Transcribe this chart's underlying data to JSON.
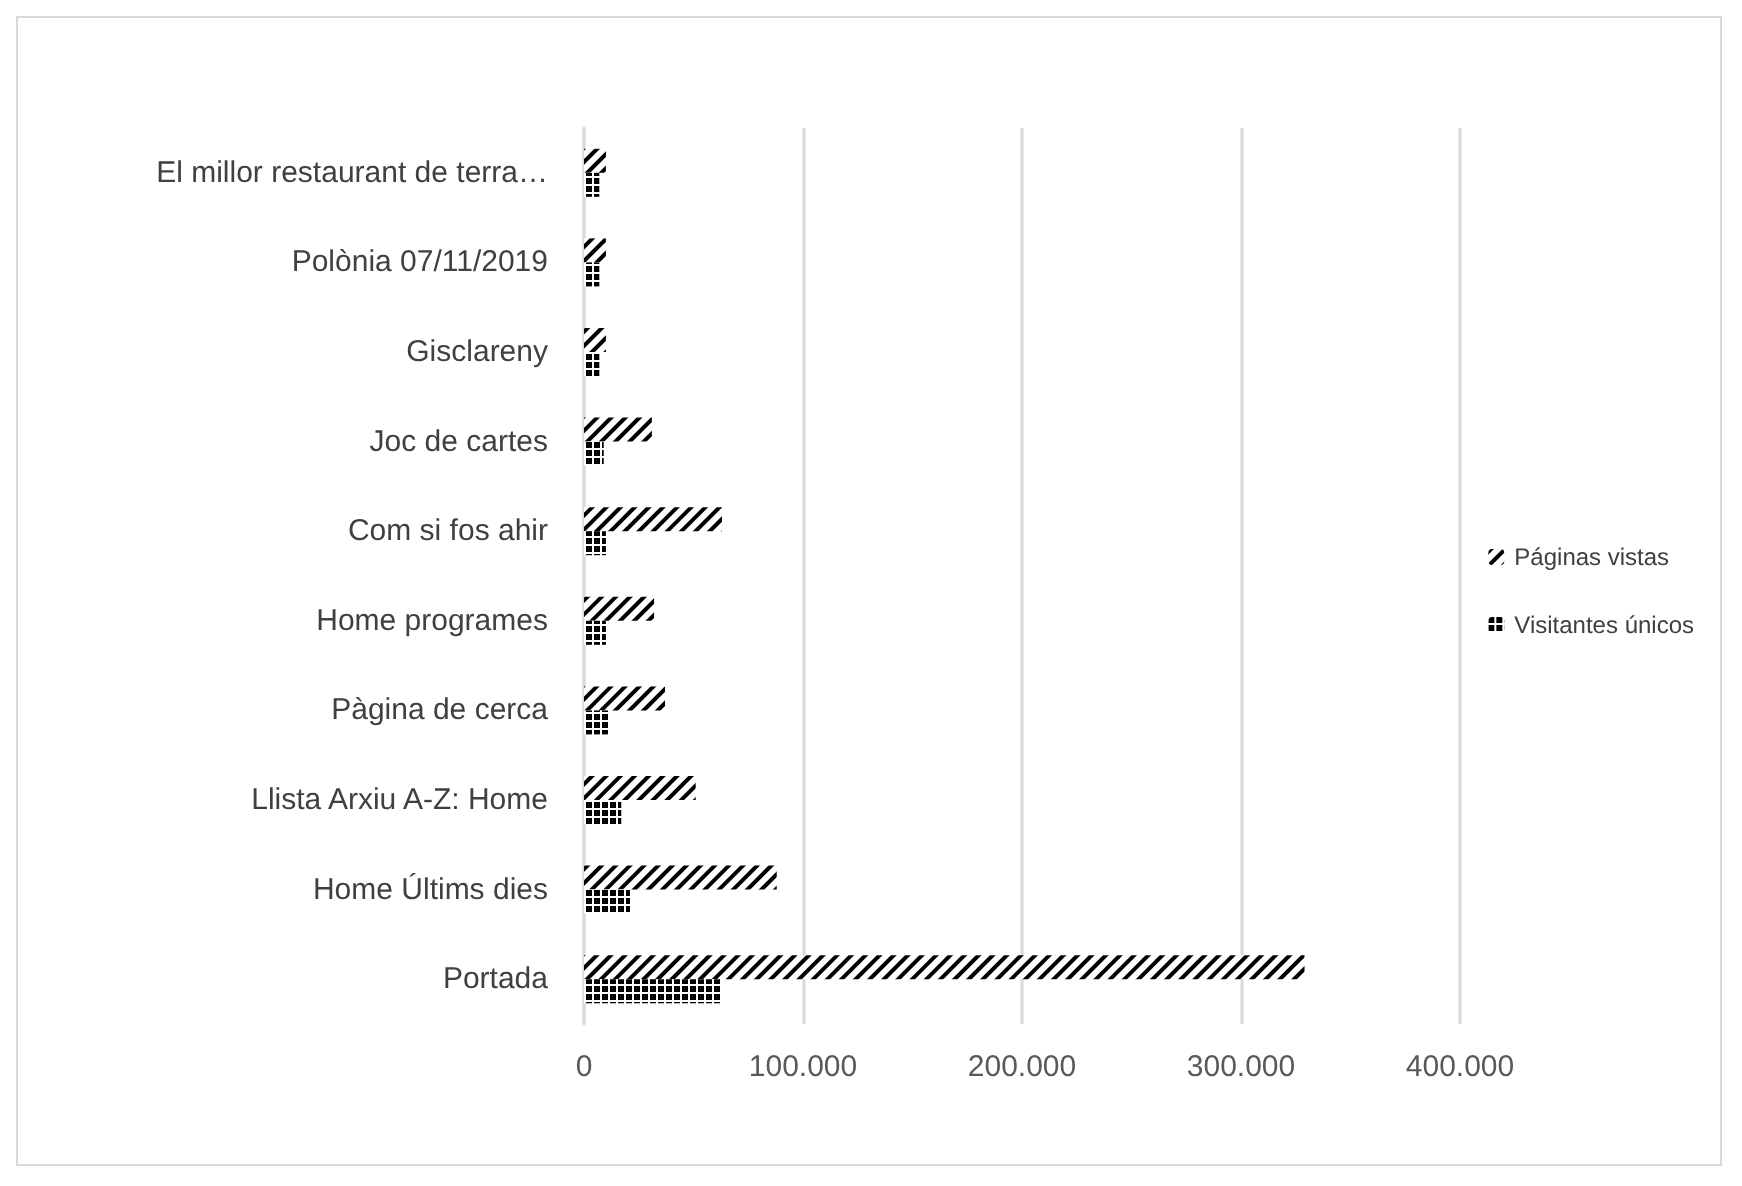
{
  "chart_data": {
    "type": "bar",
    "orientation": "horizontal",
    "categories": [
      "El millor restaurant de terra…",
      "Polònia 07/11/2019",
      "Gisclareny",
      "Joc de cartes",
      "Com si fos ahir",
      "Home programes",
      "Pàgina de cerca",
      "Llista Arxiu A-Z: Home",
      "Home Últims dies",
      "Portada"
    ],
    "series": [
      {
        "name": "Páginas vistas",
        "color": "#000000",
        "values": [
          10000,
          10000,
          10000,
          31000,
          63000,
          32000,
          37000,
          51000,
          88000,
          329000
        ]
      },
      {
        "name": "Visitantes únicos",
        "color": "#000000",
        "values": [
          7000,
          7000,
          7000,
          9000,
          10000,
          10000,
          11000,
          17000,
          21000,
          63000
        ]
      }
    ],
    "xlim": [
      0,
      400000
    ],
    "xticks": [
      {
        "value": 0,
        "label": "0"
      },
      {
        "value": 100000,
        "label": "100.000"
      },
      {
        "value": 200000,
        "label": "200.000"
      },
      {
        "value": 300000,
        "label": "300.000"
      },
      {
        "value": 400000,
        "label": "400.000"
      }
    ],
    "grid": "x",
    "legend": "right"
  }
}
